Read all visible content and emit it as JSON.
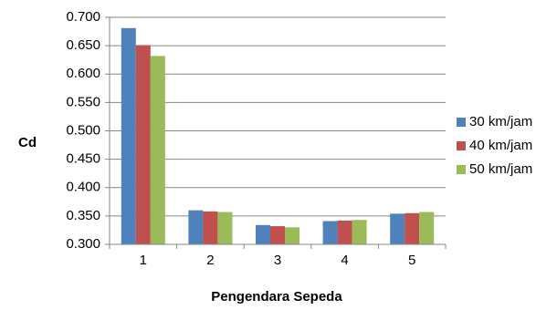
{
  "chart_data": {
    "type": "bar",
    "xlabel": "Pengendara Sepeda",
    "ylabel": "Cd",
    "categories": [
      "1",
      "2",
      "3",
      "4",
      "5"
    ],
    "ylim": [
      0.3,
      0.7
    ],
    "y_ticks": [
      "0.300",
      "0.350",
      "0.400",
      "0.450",
      "0.500",
      "0.550",
      "0.600",
      "0.650",
      "0.700"
    ],
    "grid": true,
    "legend_position": "right",
    "series": [
      {
        "name": "30 km/jam",
        "color": "#4F81BD",
        "values": [
          0.681,
          0.36,
          0.334,
          0.341,
          0.354
        ]
      },
      {
        "name": "40 km/jam",
        "color": "#C0504D",
        "values": [
          0.651,
          0.358,
          0.332,
          0.342,
          0.355
        ]
      },
      {
        "name": "50 km/jam",
        "color": "#9BBB59",
        "values": [
          0.632,
          0.357,
          0.33,
          0.343,
          0.357
        ]
      }
    ]
  }
}
